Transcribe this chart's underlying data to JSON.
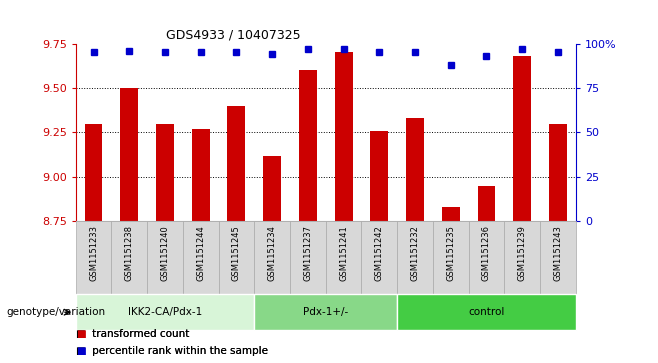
{
  "title": "GDS4933 / 10407325",
  "samples": [
    "GSM1151233",
    "GSM1151238",
    "GSM1151240",
    "GSM1151244",
    "GSM1151245",
    "GSM1151234",
    "GSM1151237",
    "GSM1151241",
    "GSM1151242",
    "GSM1151232",
    "GSM1151235",
    "GSM1151236",
    "GSM1151239",
    "GSM1151243"
  ],
  "transformed_counts": [
    9.3,
    9.5,
    9.3,
    9.27,
    9.4,
    9.12,
    9.6,
    9.7,
    9.26,
    9.33,
    8.83,
    8.95,
    9.68,
    9.3
  ],
  "percentile_ranks": [
    95,
    96,
    95,
    95,
    95,
    94,
    97,
    97,
    95,
    95,
    88,
    93,
    97,
    95
  ],
  "groups": [
    {
      "label": "IKK2-CA/Pdx-1",
      "start": 0,
      "end": 5,
      "color": "#d8f5d8"
    },
    {
      "label": "Pdx-1+/-",
      "start": 5,
      "end": 9,
      "color": "#88d888"
    },
    {
      "label": "control",
      "start": 9,
      "end": 14,
      "color": "#44cc44"
    }
  ],
  "bar_color": "#cc0000",
  "dot_color": "#0000cc",
  "ylim_left": [
    8.75,
    9.75
  ],
  "ylim_right": [
    0,
    100
  ],
  "yticks_left": [
    8.75,
    9.0,
    9.25,
    9.5,
    9.75
  ],
  "yticks_right": [
    0,
    25,
    50,
    75,
    100
  ],
  "ytick_labels_right": [
    "0",
    "25",
    "50",
    "75",
    "100%"
  ],
  "grid_values": [
    9.0,
    9.25,
    9.5
  ],
  "xlabel_left": "genotype/variation",
  "legend_items": [
    {
      "label": "transformed count",
      "color": "#cc0000"
    },
    {
      "label": "percentile rank within the sample",
      "color": "#0000cc"
    }
  ],
  "bar_width": 0.5,
  "sample_bg_color": "#d8d8d8",
  "sample_border_color": "#aaaaaa"
}
